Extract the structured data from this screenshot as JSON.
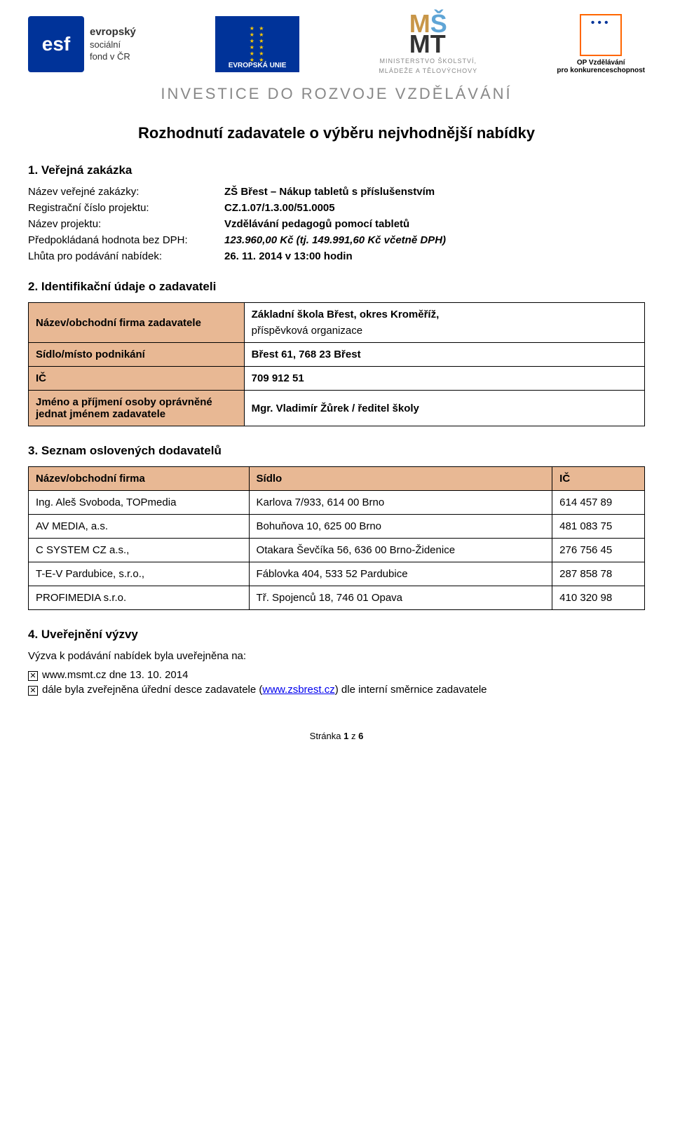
{
  "header": {
    "esf_text_lines": [
      "evropský",
      "sociální",
      "fond v ČR"
    ],
    "eu_label": "EVROPSKÁ UNIE",
    "msmt_big": "MŠMT",
    "msmt_line1": "MINISTERSTVO ŠKOLSTVÍ,",
    "msmt_line2": "MLÁDEŽE A TĚLOVÝCHOVY",
    "op_line1": "OP Vzdělávání",
    "op_line2": "pro konkurenceschopnost",
    "investment_tagline": "INVESTICE DO ROZVOJE VZDĚLÁVÁNÍ"
  },
  "title": "Rozhodnutí zadavatele o výběru nejvhodnější nabídky",
  "section1": {
    "heading": "1.    Veřejná zakázka",
    "rows": {
      "name_label": "Název veřejné zakázky:",
      "name_value": "ZŠ Břest – Nákup tabletů s příslušenstvím",
      "reg_label": "Registrační číslo projektu:",
      "reg_value": "CZ.1.07/1.3.00/51.0005",
      "project_label": "Název projektu:",
      "project_value": "Vzdělávání pedagogů pomocí tabletů",
      "estimate_label": "Předpokládaná hodnota bez DPH:",
      "estimate_value": "123.960,00 Kč (tj. 149.991,60 Kč včetně DPH)",
      "deadline_label": "Lhůta pro podávání nabídek:",
      "deadline_value": "26. 11. 2014 v 13:00 hodin"
    }
  },
  "section2": {
    "heading": "2.    Identifikační údaje o zadavateli",
    "rows": [
      {
        "label": "Název/obchodní firma zadavatele",
        "value_line1": "Základní škola Břest, okres Kroměříž,",
        "value_line2": "příspěvková organizace"
      },
      {
        "label": "Sídlo/místo podnikání",
        "value_line1": "Břest 61, 768 23 Břest",
        "value_line2": ""
      },
      {
        "label": "IČ",
        "value_line1": "709 912 51",
        "value_line2": ""
      },
      {
        "label": "Jméno a příjmení osoby oprávněné jednat jménem zadavatele",
        "value_line1": "Mgr. Vladimír Žůrek / ředitel školy",
        "value_line2": ""
      }
    ]
  },
  "section3": {
    "heading": "3.    Seznam oslovených dodavatelů",
    "columns": [
      "Název/obchodní firma",
      "Sídlo",
      "IČ"
    ],
    "rows": [
      [
        "Ing. Aleš Svoboda, TOPmedia",
        "Karlova 7/933, 614 00 Brno",
        "614 457 89"
      ],
      [
        "AV MEDIA, a.s.",
        "Bohuňova 10, 625 00 Brno",
        "481 083 75"
      ],
      [
        "C SYSTEM CZ a.s.,",
        "Otakara Ševčíka 56, 636 00 Brno-Židenice",
        "276 756 45"
      ],
      [
        "T-E-V Pardubice, s.r.o.,",
        "Fáblovka 404, 533 52 Pardubice",
        "287 858 78"
      ],
      [
        "PROFIMEDIA s.r.o.",
        "Tř. Spojenců 18, 746 01 Opava",
        "410 320 98"
      ]
    ]
  },
  "section4": {
    "heading": "4.    Uveřejnění výzvy",
    "intro": "Výzva k podávání nabídek byla uveřejněna na:",
    "items": [
      {
        "text_before": "www.msmt.cz dne 13. 10. 2014",
        "link": "",
        "text_after": ""
      },
      {
        "text_before": "dále byla zveřejněna úřední desce zadavatele (",
        "link": "www.zsbrest.cz",
        "text_after": ") dle interní směrnice zadavatele"
      }
    ]
  },
  "footer": {
    "page_current": "1",
    "page_z": "z",
    "page_total": "6",
    "page_prefix": "Stránka"
  },
  "colors": {
    "header_bg": "#e8b894",
    "eu_blue": "#003399",
    "eu_yellow": "#ffcc00",
    "op_orange": "#ff6600",
    "text": "#000000",
    "gray_text": "#888888",
    "link": "#0000ee"
  }
}
